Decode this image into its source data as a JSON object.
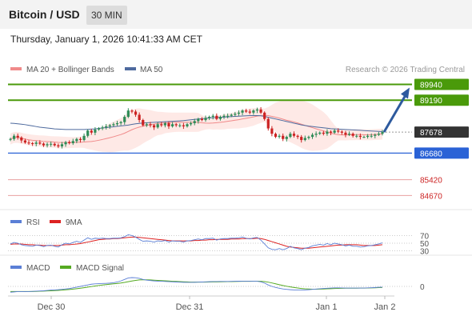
{
  "header": {
    "title": "Bitcoin / USD",
    "timeframe": "30 MIN"
  },
  "datetime": "Thursday, January 1, 2026 10:41:33 AM CET",
  "legend": {
    "bb_label": "MA 20 + Bollinger Bands",
    "ma50_label": "MA 50"
  },
  "copyright": "Research © 2026 Trading Central",
  "colors": {
    "green_level": "#4a9a0a",
    "blue_level": "#2a62d6",
    "red_level": "#e8a0a0",
    "candle_up": "#2e8b57",
    "candle_down": "#cc2222",
    "bb_fill": "#fde1de",
    "ma20": "#f08a8a",
    "ma50": "#4e6a9e",
    "arrow": "#2e5a9e",
    "price_tag": "#333333",
    "rsi": "#5b7fd6",
    "ma9": "#dd2222",
    "macd": "#5b7fd6",
    "macd_signal": "#55aa22"
  },
  "chart_data": {
    "type": "candlestick",
    "x_ticks": [
      "Dec 30",
      "Dec 31",
      "Jan 1",
      "Jan 2"
    ],
    "ylim": [
      84000,
      90300
    ],
    "last_price": 87678,
    "levels": [
      {
        "value": 89940,
        "label": "89940",
        "kind": "resistance"
      },
      {
        "value": 89190,
        "label": "89190",
        "kind": "resistance"
      },
      {
        "value": 87678,
        "label": "87678",
        "kind": "last"
      },
      {
        "value": 86680,
        "label": "86680",
        "kind": "support"
      },
      {
        "value": 85420,
        "label": "85420",
        "kind": "support-red"
      },
      {
        "value": 84670,
        "label": "84670",
        "kind": "support-red"
      }
    ],
    "close": [
      87350,
      87500,
      87420,
      87280,
      87180,
      87150,
      87120,
      87180,
      87130,
      87050,
      87100,
      87120,
      87050,
      87000,
      87100,
      87200,
      87150,
      87250,
      87350,
      87300,
      87500,
      87750,
      87650,
      87800,
      87850,
      87900,
      87950,
      88000,
      88050,
      88100,
      88150,
      88400,
      88700,
      88650,
      88500,
      88250,
      88000,
      88050,
      88000,
      87900,
      88050,
      88000,
      88100,
      87950,
      88050,
      88000,
      88000,
      87950,
      88050,
      88100,
      88200,
      88300,
      88250,
      88350,
      88400,
      88450,
      88300,
      88400,
      88450,
      88450,
      88500,
      88550,
      88600,
      88700,
      88650,
      88600,
      88700,
      88750,
      88600,
      88300,
      87850,
      87600,
      87450,
      87500,
      87350,
      87450,
      87600,
      87500,
      87450,
      87300,
      87400,
      87450,
      87550,
      87600,
      87650,
      87600,
      87700,
      87650,
      87750,
      87700,
      87650,
      87550,
      87600,
      87500,
      87500,
      87450,
      87450,
      87500,
      87500,
      87550,
      87600,
      87678
    ],
    "ma50": [
      88100,
      88090,
      88070,
      88050,
      88030,
      88000,
      87970,
      87940,
      87910,
      87890,
      87870,
      87850,
      87830,
      87820,
      87810,
      87800,
      87800,
      87800,
      87800,
      87800,
      87800,
      87810,
      87820,
      87830,
      87850,
      87870,
      87890,
      87910,
      87930,
      87950,
      87970,
      87990,
      88010,
      88040,
      88070,
      88090,
      88110,
      88120,
      88130,
      88140,
      88150,
      88160,
      88170,
      88180,
      88190,
      88200,
      88210,
      88220,
      88240,
      88260,
      88280,
      88300,
      88310,
      88330,
      88350,
      88360,
      88370,
      88380,
      88390,
      88400,
      88410,
      88420,
      88430,
      88440,
      88450,
      88460,
      88460,
      88460,
      88450,
      88420,
      88380,
      88340,
      88300,
      88260,
      88220,
      88180,
      88140,
      88100,
      88060,
      88020,
      87990,
      87960,
      87940,
      87920,
      87900,
      87880,
      87860,
      87840,
      87830,
      87820,
      87810,
      87800,
      87790,
      87780,
      87770,
      87760,
      87750,
      87740,
      87730,
      87720,
      87710,
      87700
    ],
    "rsi_levels": [
      70,
      50,
      30
    ],
    "rsi": [
      48,
      52,
      50,
      46,
      44,
      43,
      42,
      45,
      44,
      41,
      44,
      45,
      42,
      40,
      46,
      50,
      48,
      52,
      55,
      52,
      58,
      64,
      60,
      63,
      62,
      63,
      62,
      62,
      63,
      63,
      64,
      67,
      72,
      70,
      66,
      60,
      55,
      56,
      55,
      53,
      56,
      55,
      57,
      53,
      56,
      55,
      55,
      53,
      56,
      57,
      59,
      61,
      59,
      62,
      62,
      63,
      58,
      61,
      62,
      62,
      63,
      63,
      64,
      66,
      63,
      61,
      64,
      65,
      58,
      48,
      38,
      34,
      33,
      36,
      33,
      36,
      42,
      38,
      36,
      33,
      37,
      39,
      43,
      45,
      47,
      45,
      49,
      46,
      50,
      48,
      46,
      43,
      45,
      42,
      42,
      40,
      41,
      43,
      44,
      46,
      48,
      51
    ],
    "ma9": [
      47,
      48,
      48,
      48,
      47,
      46,
      46,
      45,
      45,
      44,
      44,
      44,
      44,
      44,
      45,
      46,
      46,
      47,
      48,
      49,
      51,
      53,
      55,
      57,
      59,
      60,
      61,
      61,
      62,
      62,
      63,
      64,
      65,
      66,
      66,
      65,
      64,
      63,
      62,
      61,
      60,
      59,
      58,
      57,
      56,
      56,
      56,
      56,
      56,
      56,
      57,
      57,
      58,
      58,
      59,
      59,
      60,
      60,
      60,
      60,
      61,
      61,
      61,
      62,
      62,
      62,
      62,
      63,
      62,
      60,
      57,
      54,
      51,
      48,
      45,
      42,
      40,
      39,
      38,
      37,
      37,
      37,
      38,
      39,
      40,
      41,
      42,
      43,
      44,
      45,
      45,
      46,
      46,
      46,
      46,
      45,
      44,
      44,
      44,
      44,
      45,
      46
    ],
    "macd_zero": 0,
    "macd": [
      -80,
      -75,
      -70,
      -70,
      -72,
      -70,
      -68,
      -65,
      -62,
      -60,
      -55,
      -50,
      -48,
      -45,
      -40,
      -35,
      -30,
      -20,
      -10,
      0,
      10,
      20,
      30,
      35,
      38,
      40,
      42,
      45,
      50,
      60,
      75,
      95,
      115,
      120,
      118,
      110,
      95,
      85,
      80,
      75,
      72,
      70,
      68,
      65,
      62,
      60,
      58,
      56,
      55,
      55,
      56,
      58,
      60,
      62,
      64,
      66,
      66,
      67,
      68,
      68,
      69,
      70,
      71,
      72,
      72,
      72,
      72,
      70,
      62,
      45,
      20,
      0,
      -15,
      -25,
      -35,
      -40,
      -45,
      -48,
      -50,
      -50,
      -48,
      -45,
      -40,
      -36,
      -32,
      -28,
      -25,
      -22,
      -20,
      -20,
      -21,
      -22,
      -22,
      -22,
      -23,
      -23,
      -22,
      -20,
      -18,
      -15,
      -12,
      -10
    ],
    "macd_signal": [
      -70,
      -70,
      -70,
      -70,
      -70,
      -70,
      -69,
      -68,
      -66,
      -64,
      -62,
      -60,
      -57,
      -54,
      -50,
      -46,
      -42,
      -37,
      -31,
      -25,
      -18,
      -10,
      -2,
      6,
      13,
      19,
      25,
      30,
      35,
      40,
      46,
      54,
      64,
      74,
      82,
      88,
      90,
      90,
      88,
      85,
      82,
      79,
      76,
      73,
      70,
      68,
      65,
      63,
      61,
      59,
      58,
      58,
      58,
      59,
      60,
      61,
      62,
      63,
      64,
      65,
      66,
      67,
      68,
      69,
      70,
      70,
      71,
      71,
      70,
      66,
      58,
      47,
      35,
      23,
      12,
      2,
      -7,
      -15,
      -22,
      -28,
      -33,
      -36,
      -38,
      -38,
      -37,
      -35,
      -33,
      -31,
      -29,
      -27,
      -26,
      -25,
      -24,
      -24,
      -24,
      -23,
      -23,
      -22,
      -21,
      -19,
      -17,
      -15
    ]
  }
}
